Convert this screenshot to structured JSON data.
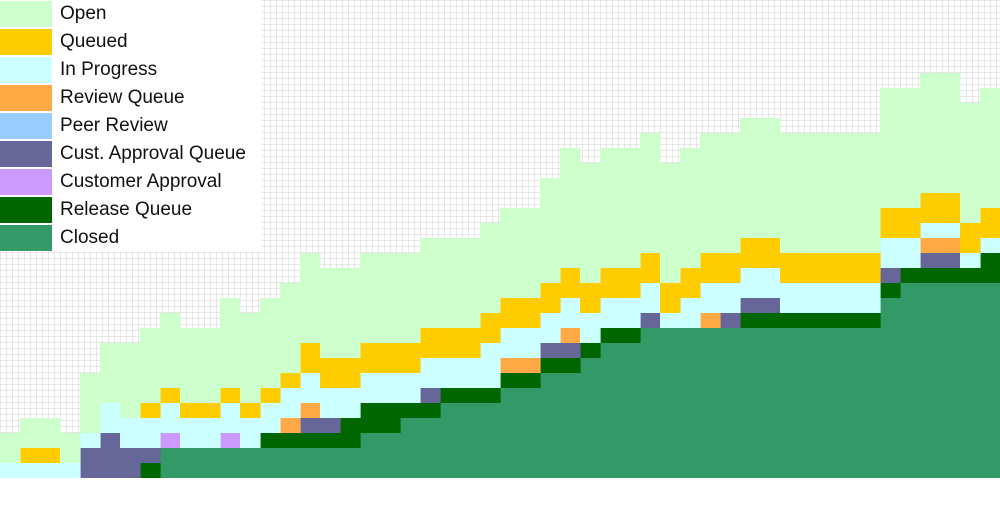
{
  "chart_data": {
    "type": "area",
    "stacked": true,
    "grid": true,
    "legend_position": "top-left",
    "x": [
      1,
      2,
      3,
      4,
      5,
      6,
      7,
      8,
      9,
      10,
      11,
      12,
      13,
      14,
      15,
      16,
      17,
      18,
      19,
      20,
      21,
      22,
      23,
      24,
      25,
      26,
      27,
      28,
      29,
      30,
      31,
      32,
      33,
      34,
      35,
      36,
      37,
      38,
      39,
      40,
      41,
      42,
      43,
      44,
      45,
      46,
      47,
      48,
      49,
      50
    ],
    "series": [
      {
        "name": "Closed",
        "color": "#339966",
        "values": [
          0,
          0,
          0,
          0,
          0,
          0,
          0,
          0,
          2,
          2,
          2,
          2,
          2,
          2,
          2,
          2,
          2,
          2,
          3,
          3,
          4,
          4,
          5,
          5,
          5,
          6,
          6,
          7,
          7,
          8,
          9,
          9,
          10,
          10,
          10,
          10,
          10,
          10,
          10,
          10,
          10,
          10,
          10,
          10,
          12,
          13,
          13,
          13,
          13,
          13
        ]
      },
      {
        "name": "Release Queue",
        "color": "#006600",
        "values": [
          0,
          0,
          0,
          0,
          0,
          0,
          0,
          1,
          0,
          0,
          0,
          0,
          0,
          1,
          1,
          1,
          1,
          2,
          2,
          2,
          1,
          1,
          1,
          1,
          1,
          1,
          1,
          1,
          1,
          1,
          1,
          1,
          0,
          0,
          0,
          0,
          0,
          1,
          1,
          1,
          1,
          1,
          1,
          1,
          1,
          1,
          1,
          1,
          1,
          2
        ]
      },
      {
        "name": "Release Queue",
        "color": "#006600",
        "values": [
          0,
          0,
          0,
          0,
          0,
          0,
          0,
          0,
          0,
          0,
          0,
          0,
          0,
          0,
          0,
          0,
          0,
          0,
          0,
          0,
          0,
          0,
          0,
          0,
          0,
          0,
          0,
          0,
          0,
          0,
          0,
          0,
          0,
          0,
          0,
          0,
          0,
          0,
          0,
          0,
          0,
          0,
          0,
          0,
          0,
          0,
          0,
          0,
          0,
          0
        ]
      },
      {
        "name": "Customer Approval",
        "color": "#cc99ff",
        "values": [
          0,
          0,
          0,
          0,
          0,
          0,
          0,
          0,
          1,
          0,
          0,
          1,
          0,
          0,
          0,
          0,
          0,
          0,
          0,
          0,
          0,
          0,
          0,
          0,
          0,
          0,
          0,
          0,
          0,
          0,
          0,
          0,
          0,
          0,
          0,
          0,
          0,
          0,
          0,
          0,
          0,
          0,
          0,
          0,
          0,
          0,
          0,
          0,
          0,
          0
        ]
      },
      {
        "name": "Cust. Approval Queue",
        "color": "#666699",
        "values": [
          0,
          0,
          0,
          0,
          2,
          3,
          2,
          1,
          0,
          0,
          0,
          0,
          0,
          0,
          0,
          1,
          1,
          0,
          0,
          0,
          0,
          1,
          0,
          0,
          0,
          0,
          0,
          1,
          1,
          0,
          0,
          0,
          1,
          0,
          0,
          0,
          1,
          1,
          1,
          0,
          0,
          0,
          0,
          0,
          1,
          0,
          1,
          1,
          0,
          0
        ]
      },
      {
        "name": "Peer Review",
        "color": "#99ccff",
        "values": [
          0,
          0,
          0,
          0,
          0,
          0,
          0,
          0,
          0,
          0,
          0,
          0,
          0,
          0,
          0,
          0,
          0,
          0,
          0,
          0,
          0,
          0,
          0,
          0,
          0,
          0,
          0,
          0,
          0,
          0,
          0,
          0,
          0,
          0,
          0,
          0,
          0,
          0,
          0,
          0,
          0,
          0,
          0,
          0,
          0,
          0,
          0,
          0,
          0,
          0
        ]
      },
      {
        "name": "Review Queue",
        "color": "#ffaa44",
        "values": [
          0,
          0,
          0,
          0,
          0,
          0,
          0,
          0,
          0,
          0,
          0,
          0,
          0,
          0,
          1,
          1,
          0,
          0,
          0,
          0,
          0,
          0,
          0,
          0,
          0,
          1,
          1,
          0,
          1,
          0,
          0,
          0,
          0,
          0,
          0,
          1,
          0,
          0,
          0,
          0,
          0,
          0,
          0,
          0,
          0,
          0,
          1,
          1,
          0,
          0
        ]
      },
      {
        "name": "In Progress",
        "color": "#ccffff",
        "values": [
          1,
          1,
          1,
          1,
          1,
          2,
          2,
          2,
          2,
          2,
          2,
          2,
          2,
          2,
          2,
          2,
          2,
          2,
          2,
          2,
          2,
          2,
          2,
          2,
          3,
          2,
          2,
          2,
          2,
          2,
          2,
          2,
          2,
          1,
          2,
          2,
          2,
          2,
          2,
          2,
          2,
          2,
          2,
          2,
          2,
          2,
          1,
          1,
          1,
          1
        ]
      },
      {
        "name": "Queued",
        "color": "#ffcc00",
        "values": [
          0,
          1,
          1,
          0,
          0,
          0,
          0,
          1,
          1,
          1,
          1,
          1,
          1,
          1,
          1,
          2,
          2,
          2,
          2,
          2,
          2,
          2,
          2,
          2,
          2,
          2,
          2,
          2,
          2,
          2,
          2,
          2,
          2,
          2,
          2,
          2,
          2,
          2,
          2,
          2,
          2,
          2,
          2,
          2,
          2,
          2,
          2,
          2,
          2,
          2
        ]
      },
      {
        "name": "Open",
        "color": "#ccffcc",
        "values": [
          2,
          2,
          2,
          2,
          4,
          4,
          5,
          5,
          5,
          5,
          5,
          6,
          6,
          6,
          6,
          6,
          6,
          6,
          6,
          6,
          6,
          6,
          6,
          6,
          6,
          6,
          6,
          7,
          8,
          8,
          8,
          8,
          8,
          8,
          8,
          8,
          8,
          8,
          8,
          8,
          8,
          8,
          8,
          8,
          8,
          8,
          8,
          8,
          8,
          8
        ]
      }
    ],
    "legend": [
      {
        "label": "Open",
        "color": "#ccffcc"
      },
      {
        "label": "Queued",
        "color": "#ffcc00"
      },
      {
        "label": "In Progress",
        "color": "#ccffff"
      },
      {
        "label": "Review Queue",
        "color": "#ffaa44"
      },
      {
        "label": "Peer Review",
        "color": "#99ccff"
      },
      {
        "label": "Cust. Approval Queue",
        "color": "#666699"
      },
      {
        "label": "Customer Approval",
        "color": "#cc99ff"
      },
      {
        "label": "Release Queue",
        "color": "#006600"
      },
      {
        "label": "Closed",
        "color": "#339966"
      }
    ],
    "title": "",
    "xlabel": "",
    "ylabel": ""
  }
}
